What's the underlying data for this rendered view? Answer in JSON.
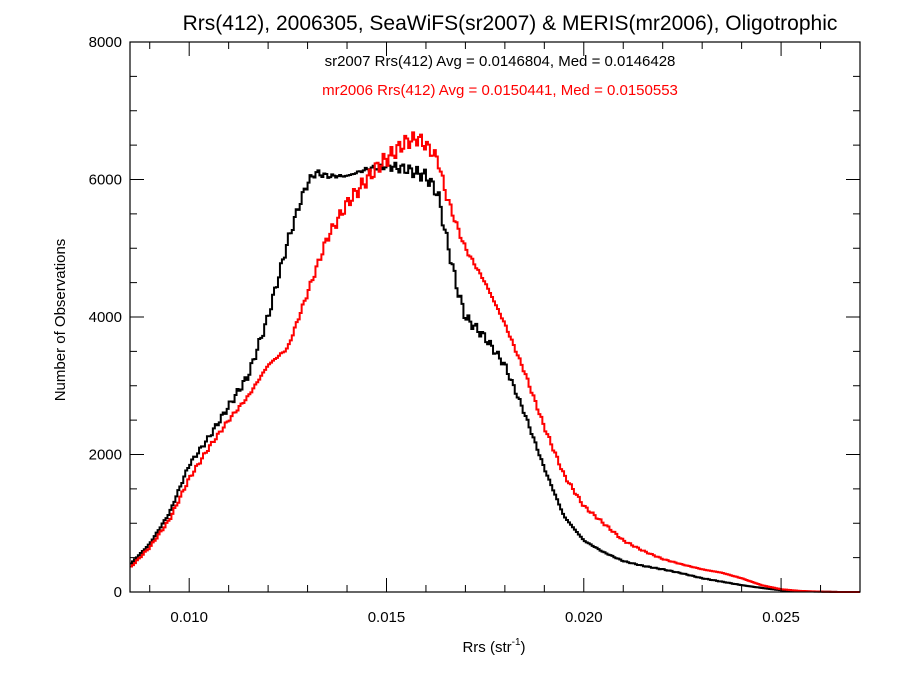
{
  "chart_data": {
    "type": "line",
    "title": "Rrs(412), 2006305, SeaWiFS(sr2007) & MERIS(mr2006), Oligotrophic",
    "xlabel": {
      "main": "Rrs (str",
      "sup": "-1",
      "close": ")"
    },
    "ylabel": "Number of Observations",
    "xlim": [
      0.0085,
      0.027
    ],
    "ylim": [
      0,
      8000
    ],
    "xticks": [
      0.01,
      0.015,
      0.02,
      0.025
    ],
    "xtick_labels": [
      "0.010",
      "0.015",
      "0.020",
      "0.025"
    ],
    "yticks": [
      0,
      2000,
      4000,
      6000,
      8000
    ],
    "ytick_labels": [
      "0",
      "2000",
      "4000",
      "6000",
      "8000"
    ],
    "grid": false,
    "step_style": "histogram",
    "annotations": [
      {
        "text": "sr2007 Rrs(412) Avg = 0.0146804, Med = 0.0146428",
        "color": "#000000"
      },
      {
        "text": "mr2006 Rrs(412) Avg = 0.0150441, Med = 0.0150553",
        "color": "#ff0000"
      }
    ],
    "series": [
      {
        "name": "sr2007",
        "color": "#000000",
        "x": [
          0.0085,
          0.009,
          0.0095,
          0.01,
          0.0105,
          0.011,
          0.0115,
          0.012,
          0.0125,
          0.0128,
          0.013,
          0.0132,
          0.0135,
          0.014,
          0.0145,
          0.015,
          0.0155,
          0.016,
          0.0163,
          0.0165,
          0.0168,
          0.017,
          0.0175,
          0.018,
          0.0185,
          0.019,
          0.0195,
          0.02,
          0.0205,
          0.021,
          0.0215,
          0.022,
          0.0225,
          0.023,
          0.0235,
          0.024,
          0.0245,
          0.025,
          0.0255,
          0.026,
          0.0265,
          0.027
        ],
        "y": [
          400,
          700,
          1150,
          1850,
          2250,
          2700,
          3150,
          4000,
          5100,
          5650,
          5950,
          6100,
          6050,
          6050,
          6150,
          6200,
          6150,
          6050,
          5800,
          5200,
          4400,
          4000,
          3700,
          3300,
          2600,
          1800,
          1100,
          750,
          580,
          450,
          380,
          330,
          270,
          200,
          150,
          100,
          60,
          25,
          10,
          5,
          0,
          0
        ]
      },
      {
        "name": "mr2006",
        "color": "#ff0000",
        "x": [
          0.0085,
          0.009,
          0.0095,
          0.01,
          0.0105,
          0.011,
          0.0115,
          0.012,
          0.0125,
          0.013,
          0.0135,
          0.014,
          0.0145,
          0.0148,
          0.015,
          0.0152,
          0.0155,
          0.0158,
          0.016,
          0.0163,
          0.0165,
          0.0168,
          0.017,
          0.0175,
          0.018,
          0.0185,
          0.019,
          0.0195,
          0.02,
          0.0205,
          0.021,
          0.0215,
          0.022,
          0.0225,
          0.023,
          0.0235,
          0.024,
          0.0245,
          0.025,
          0.0255,
          0.026,
          0.0265,
          0.027
        ],
        "y": [
          350,
          650,
          1050,
          1650,
          2100,
          2500,
          2850,
          3300,
          3550,
          4350,
          5150,
          5650,
          6000,
          6200,
          6300,
          6400,
          6550,
          6600,
          6500,
          6300,
          5800,
          5300,
          5000,
          4500,
          3900,
          3200,
          2400,
          1700,
          1250,
          1000,
          750,
          600,
          480,
          400,
          330,
          280,
          200,
          100,
          40,
          15,
          5,
          0,
          0
        ]
      }
    ]
  }
}
